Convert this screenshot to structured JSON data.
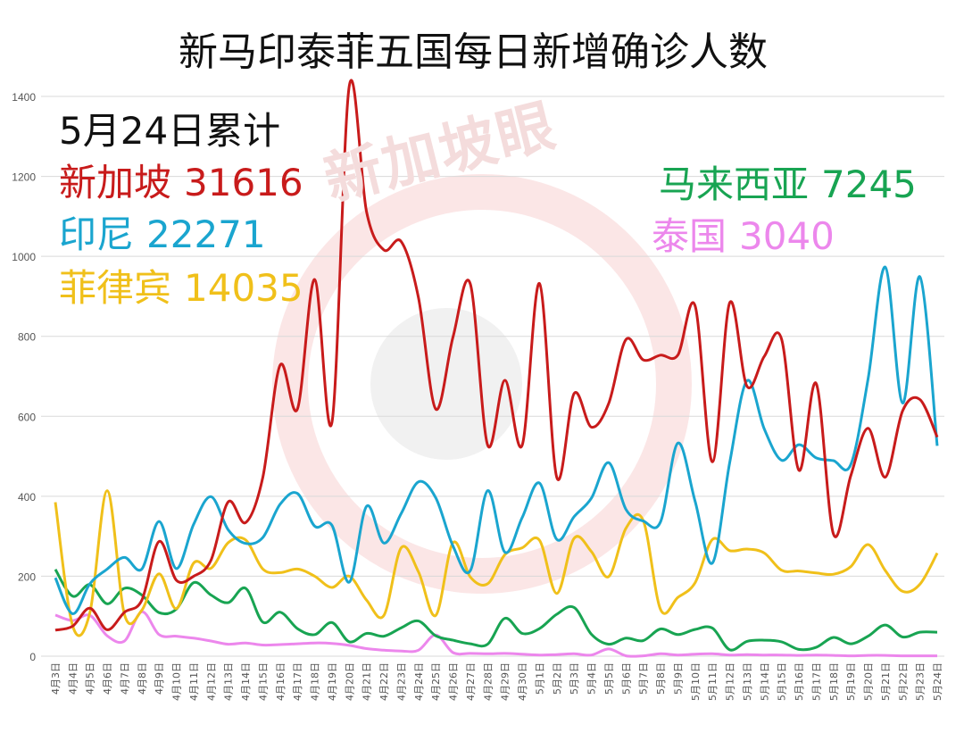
{
  "title": "新马印泰菲五国每日新增确诊人数",
  "watermark": "新加坡眼",
  "annotations": {
    "heading": "5月24日累计",
    "items": [
      {
        "label": "新加坡",
        "value": "31616",
        "color": "#c81b1b"
      },
      {
        "label": "印尼",
        "value": "22271",
        "color": "#1aa5cf"
      },
      {
        "label": "菲律宾",
        "value": "14035",
        "color": "#f0c01a"
      },
      {
        "label": "马来西亚",
        "value": "7245",
        "color": "#18a452"
      },
      {
        "label": "泰国",
        "value": "3040",
        "color": "#ec87ec"
      }
    ]
  },
  "chart_data": {
    "type": "line",
    "x": [
      "4月3日",
      "4月4日",
      "4月5日",
      "4月6日",
      "4月7日",
      "4月8日",
      "4月9日",
      "4月10日",
      "4月11日",
      "4月12日",
      "4月13日",
      "4月14日",
      "4月15日",
      "4月16日",
      "4月17日",
      "4月18日",
      "4月19日",
      "4月20日",
      "4月21日",
      "4月22日",
      "4月23日",
      "4月24日",
      "4月25日",
      "4月26日",
      "4月27日",
      "4月28日",
      "4月29日",
      "4月30日",
      "5月1日",
      "5月2日",
      "5月3日",
      "5月4日",
      "5月5日",
      "5月6日",
      "5月7日",
      "5月8日",
      "5月9日",
      "5月10日",
      "5月11日",
      "5月12日",
      "5月13日",
      "5月14日",
      "5月15日",
      "5月16日",
      "5月17日",
      "5月18日",
      "5月19日",
      "5月20日",
      "5月21日",
      "5月22日",
      "5月23日",
      "5月24日"
    ],
    "ylim": [
      0,
      1400
    ],
    "yticks": [
      0,
      200,
      400,
      600,
      800,
      1000,
      1200,
      1400
    ],
    "grid": true,
    "series": [
      {
        "key": "singapore",
        "color": "#c81b1b",
        "values": [
          65,
          75,
          120,
          66,
          110,
          140,
          287,
          190,
          200,
          240,
          386,
          334,
          448,
          728,
          618,
          942,
          586,
          1426,
          1111,
          1016,
          1037,
          897,
          618,
          799,
          931,
          528,
          690,
          528,
          932,
          447,
          657,
          573,
          632,
          792,
          741,
          753,
          753,
          876,
          486,
          884,
          675,
          750,
          793,
          465,
          682,
          305,
          451,
          570,
          448,
          614,
          642,
          548
        ]
      },
      {
        "key": "indonesia",
        "color": "#1aa5cf",
        "values": [
          196,
          106,
          181,
          218,
          247,
          218,
          337,
          219,
          330,
          399,
          316,
          282,
          297,
          380,
          407,
          325,
          327,
          185,
          375,
          283,
          357,
          436,
          396,
          275,
          214,
          414,
          260,
          347,
          433,
          292,
          349,
          395,
          484,
          367,
          338,
          336,
          533,
          387,
          233,
          484,
          689,
          568,
          490,
          529,
          496,
          489,
          479,
          693,
          973,
          633,
          949,
          526
        ]
      },
      {
        "key": "philippines",
        "color": "#f0c01a",
        "values": [
          385,
          76,
          109,
          414,
          104,
          115,
          206,
          119,
          233,
          220,
          284,
          291,
          218,
          209,
          218,
          200,
          172,
          200,
          140,
          102,
          271,
          211,
          102,
          284,
          198,
          181,
          254,
          271,
          290,
          157,
          295,
          262,
          199,
          320,
          339,
          117,
          147,
          184,
          292,
          264,
          268,
          258,
          215,
          213,
          208,
          205,
          224,
          279,
          214,
          162,
          180,
          258
        ]
      },
      {
        "key": "malaysia",
        "color": "#18a452",
        "values": [
          217,
          150,
          179,
          131,
          170,
          153,
          109,
          118,
          184,
          153,
          134,
          170,
          85,
          110,
          69,
          54,
          84,
          36,
          57,
          50,
          71,
          88,
          51,
          40,
          31,
          30,
          95,
          57,
          69,
          105,
          122,
          55,
          30,
          45,
          39,
          68,
          54,
          67,
          70,
          16,
          37,
          40,
          36,
          17,
          22,
          47,
          31,
          50,
          78,
          48,
          60,
          60
        ]
      },
      {
        "key": "thailand",
        "color": "#ec87ec",
        "values": [
          103,
          89,
          102,
          51,
          38,
          111,
          54,
          50,
          45,
          38,
          30,
          33,
          28,
          29,
          31,
          33,
          32,
          27,
          19,
          15,
          13,
          15,
          53,
          9,
          7,
          6,
          7,
          5,
          3,
          4,
          6,
          3,
          18,
          1,
          1,
          6,
          3,
          5,
          6,
          3,
          4,
          3,
          3,
          2,
          3,
          2,
          1,
          2,
          2,
          1,
          1,
          1
        ]
      }
    ]
  }
}
